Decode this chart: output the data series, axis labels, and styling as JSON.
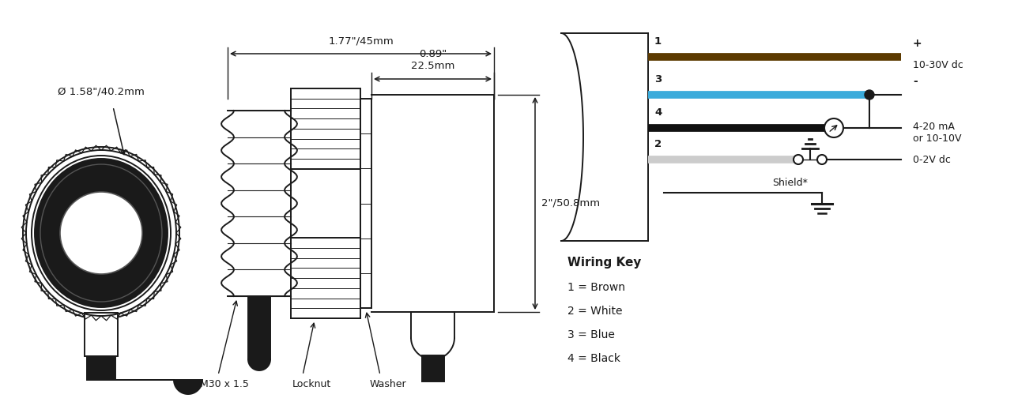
{
  "bg_color": "#ffffff",
  "line_color": "#1a1a1a",
  "brown_color": "#5C3A00",
  "blue_color": "#3AABDB",
  "black_color": "#111111",
  "dim_color": "#1a1a1a",
  "text_color": "#1a1a1a",
  "dim1": "1.77\"/45mm",
  "dim2": "0.89\"\n22.5mm",
  "dim3": "2\"/50.8mm",
  "dim_diameter": "Ø 1.58\"/40.2mm",
  "label_locknut": "Locknut",
  "label_washer": "Washer",
  "label_m30": "M30 x 1.5",
  "wiring_key_title": "Wiring Key",
  "wiring_1": "1 = Brown",
  "wiring_2": "2 = White",
  "wiring_3": "3 = Blue",
  "wiring_4": "4 = Black",
  "wire_label_1": "1",
  "wire_label_2": "2",
  "wire_label_3": "3",
  "wire_label_4": "4",
  "label_plus": "+",
  "label_minus": "-",
  "label_voltage": "10-30V dc",
  "label_current": "4-20 mA\nor 10-10V",
  "label_output": "0-2V dc",
  "label_shield": "Shield*"
}
